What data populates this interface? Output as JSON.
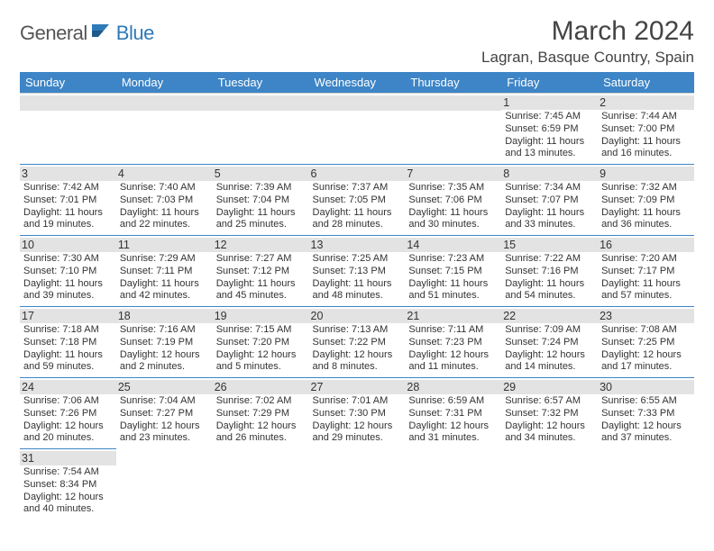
{
  "logo": {
    "general": "General",
    "blue": "Blue"
  },
  "title": "March 2024",
  "location": "Lagran, Basque Country, Spain",
  "colors": {
    "header_bg": "#3d85c6",
    "header_text": "#ffffff",
    "daynum_bg": "#e3e3e3",
    "row_border": "#3d85c6",
    "logo_blue": "#2f7ab8"
  },
  "weekdays": [
    "Sunday",
    "Monday",
    "Tuesday",
    "Wednesday",
    "Thursday",
    "Friday",
    "Saturday"
  ],
  "weeks": [
    [
      null,
      null,
      null,
      null,
      null,
      {
        "n": "1",
        "sr": "Sunrise: 7:45 AM",
        "ss": "Sunset: 6:59 PM",
        "dl": "Daylight: 11 hours and 13 minutes."
      },
      {
        "n": "2",
        "sr": "Sunrise: 7:44 AM",
        "ss": "Sunset: 7:00 PM",
        "dl": "Daylight: 11 hours and 16 minutes."
      }
    ],
    [
      {
        "n": "3",
        "sr": "Sunrise: 7:42 AM",
        "ss": "Sunset: 7:01 PM",
        "dl": "Daylight: 11 hours and 19 minutes."
      },
      {
        "n": "4",
        "sr": "Sunrise: 7:40 AM",
        "ss": "Sunset: 7:03 PM",
        "dl": "Daylight: 11 hours and 22 minutes."
      },
      {
        "n": "5",
        "sr": "Sunrise: 7:39 AM",
        "ss": "Sunset: 7:04 PM",
        "dl": "Daylight: 11 hours and 25 minutes."
      },
      {
        "n": "6",
        "sr": "Sunrise: 7:37 AM",
        "ss": "Sunset: 7:05 PM",
        "dl": "Daylight: 11 hours and 28 minutes."
      },
      {
        "n": "7",
        "sr": "Sunrise: 7:35 AM",
        "ss": "Sunset: 7:06 PM",
        "dl": "Daylight: 11 hours and 30 minutes."
      },
      {
        "n": "8",
        "sr": "Sunrise: 7:34 AM",
        "ss": "Sunset: 7:07 PM",
        "dl": "Daylight: 11 hours and 33 minutes."
      },
      {
        "n": "9",
        "sr": "Sunrise: 7:32 AM",
        "ss": "Sunset: 7:09 PM",
        "dl": "Daylight: 11 hours and 36 minutes."
      }
    ],
    [
      {
        "n": "10",
        "sr": "Sunrise: 7:30 AM",
        "ss": "Sunset: 7:10 PM",
        "dl": "Daylight: 11 hours and 39 minutes."
      },
      {
        "n": "11",
        "sr": "Sunrise: 7:29 AM",
        "ss": "Sunset: 7:11 PM",
        "dl": "Daylight: 11 hours and 42 minutes."
      },
      {
        "n": "12",
        "sr": "Sunrise: 7:27 AM",
        "ss": "Sunset: 7:12 PM",
        "dl": "Daylight: 11 hours and 45 minutes."
      },
      {
        "n": "13",
        "sr": "Sunrise: 7:25 AM",
        "ss": "Sunset: 7:13 PM",
        "dl": "Daylight: 11 hours and 48 minutes."
      },
      {
        "n": "14",
        "sr": "Sunrise: 7:23 AM",
        "ss": "Sunset: 7:15 PM",
        "dl": "Daylight: 11 hours and 51 minutes."
      },
      {
        "n": "15",
        "sr": "Sunrise: 7:22 AM",
        "ss": "Sunset: 7:16 PM",
        "dl": "Daylight: 11 hours and 54 minutes."
      },
      {
        "n": "16",
        "sr": "Sunrise: 7:20 AM",
        "ss": "Sunset: 7:17 PM",
        "dl": "Daylight: 11 hours and 57 minutes."
      }
    ],
    [
      {
        "n": "17",
        "sr": "Sunrise: 7:18 AM",
        "ss": "Sunset: 7:18 PM",
        "dl": "Daylight: 11 hours and 59 minutes."
      },
      {
        "n": "18",
        "sr": "Sunrise: 7:16 AM",
        "ss": "Sunset: 7:19 PM",
        "dl": "Daylight: 12 hours and 2 minutes."
      },
      {
        "n": "19",
        "sr": "Sunrise: 7:15 AM",
        "ss": "Sunset: 7:20 PM",
        "dl": "Daylight: 12 hours and 5 minutes."
      },
      {
        "n": "20",
        "sr": "Sunrise: 7:13 AM",
        "ss": "Sunset: 7:22 PM",
        "dl": "Daylight: 12 hours and 8 minutes."
      },
      {
        "n": "21",
        "sr": "Sunrise: 7:11 AM",
        "ss": "Sunset: 7:23 PM",
        "dl": "Daylight: 12 hours and 11 minutes."
      },
      {
        "n": "22",
        "sr": "Sunrise: 7:09 AM",
        "ss": "Sunset: 7:24 PM",
        "dl": "Daylight: 12 hours and 14 minutes."
      },
      {
        "n": "23",
        "sr": "Sunrise: 7:08 AM",
        "ss": "Sunset: 7:25 PM",
        "dl": "Daylight: 12 hours and 17 minutes."
      }
    ],
    [
      {
        "n": "24",
        "sr": "Sunrise: 7:06 AM",
        "ss": "Sunset: 7:26 PM",
        "dl": "Daylight: 12 hours and 20 minutes."
      },
      {
        "n": "25",
        "sr": "Sunrise: 7:04 AM",
        "ss": "Sunset: 7:27 PM",
        "dl": "Daylight: 12 hours and 23 minutes."
      },
      {
        "n": "26",
        "sr": "Sunrise: 7:02 AM",
        "ss": "Sunset: 7:29 PM",
        "dl": "Daylight: 12 hours and 26 minutes."
      },
      {
        "n": "27",
        "sr": "Sunrise: 7:01 AM",
        "ss": "Sunset: 7:30 PM",
        "dl": "Daylight: 12 hours and 29 minutes."
      },
      {
        "n": "28",
        "sr": "Sunrise: 6:59 AM",
        "ss": "Sunset: 7:31 PM",
        "dl": "Daylight: 12 hours and 31 minutes."
      },
      {
        "n": "29",
        "sr": "Sunrise: 6:57 AM",
        "ss": "Sunset: 7:32 PM",
        "dl": "Daylight: 12 hours and 34 minutes."
      },
      {
        "n": "30",
        "sr": "Sunrise: 6:55 AM",
        "ss": "Sunset: 7:33 PM",
        "dl": "Daylight: 12 hours and 37 minutes."
      }
    ],
    [
      {
        "n": "31",
        "sr": "Sunrise: 7:54 AM",
        "ss": "Sunset: 8:34 PM",
        "dl": "Daylight: 12 hours and 40 minutes."
      },
      null,
      null,
      null,
      null,
      null,
      null
    ]
  ]
}
